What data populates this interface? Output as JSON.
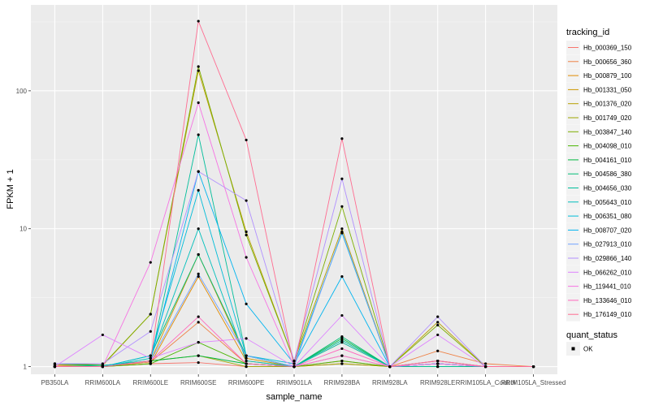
{
  "chart_data": {
    "type": "line",
    "title": "",
    "xlabel": "sample_name",
    "ylabel": "FPKM + 1",
    "y_scale": "log10",
    "ylim": [
      0.88,
      420
    ],
    "y_ticks": [
      {
        "value": 1,
        "label": "1"
      },
      {
        "value": 10,
        "label": "10"
      },
      {
        "value": 100,
        "label": "100"
      }
    ],
    "categories": [
      "PB350LA",
      "RRIM600LA",
      "RRIM600LE",
      "RRIM600SE",
      "RRIM600PE",
      "RRIM901LA",
      "RRIM928BA",
      "RRIM928LA",
      "RRIM928LE",
      "RRIM105LA_Control",
      "RRIM105LA_Stressed"
    ],
    "grid": true,
    "legend": {
      "title": "tracking_id",
      "placement": "right"
    },
    "point_legend": {
      "title": "quant_status",
      "entries": [
        "OK"
      ]
    },
    "series": [
      {
        "name": "Hb_000369_150",
        "color": "#F8766D",
        "values": [
          1.0,
          1.0,
          1.05,
          1.07,
          1.0,
          1.0,
          1.05,
          1.0,
          1.05,
          1.0,
          1.0
        ]
      },
      {
        "name": "Hb_000656_360",
        "color": "#EE8043",
        "values": [
          1.02,
          1.0,
          1.08,
          2.1,
          1.05,
          1.0,
          1.1,
          1.0,
          1.3,
          1.05,
          1.0
        ]
      },
      {
        "name": "Hb_000879_100",
        "color": "#E08B00",
        "values": [
          1.0,
          1.0,
          1.05,
          4.5,
          1.1,
          1.0,
          1.2,
          1.0,
          1.1,
          1.0,
          1.0
        ]
      },
      {
        "name": "Hb_001331_050",
        "color": "#CD9600",
        "values": [
          1.0,
          1.0,
          1.1,
          6.5,
          1.15,
          1.0,
          1.5,
          1.0,
          1.05,
          1.0,
          1.0
        ]
      },
      {
        "name": "Hb_001376_020",
        "color": "#B79F00",
        "values": [
          1.03,
          1.02,
          2.4,
          140,
          9.5,
          1.1,
          10.0,
          1.0,
          2.1,
          1.0,
          1.0
        ]
      },
      {
        "name": "Hb_001749_020",
        "color": "#9DA700",
        "values": [
          1.0,
          1.0,
          1.1,
          1.2,
          1.0,
          1.0,
          1.05,
          1.0,
          1.0,
          1.0,
          1.0
        ]
      },
      {
        "name": "Hb_003847_140",
        "color": "#7CAE00",
        "values": [
          1.05,
          1.03,
          2.4,
          150,
          9.0,
          1.1,
          14.5,
          1.0,
          2.0,
          1.0,
          1.0
        ]
      },
      {
        "name": "Hb_004098_010",
        "color": "#49B500",
        "values": [
          1.0,
          1.0,
          1.05,
          1.5,
          1.05,
          1.0,
          1.1,
          1.0,
          1.05,
          1.0,
          1.0
        ]
      },
      {
        "name": "Hb_004161_010",
        "color": "#00B83F",
        "values": [
          1.05,
          1.02,
          1.1,
          1.2,
          1.05,
          1.0,
          1.6,
          1.0,
          1.0,
          1.0,
          1.0
        ]
      },
      {
        "name": "Hb_004586_380",
        "color": "#00BC76",
        "values": [
          1.0,
          1.0,
          1.2,
          6.5,
          1.2,
          1.0,
          1.65,
          1.0,
          1.05,
          1.0,
          1.0
        ]
      },
      {
        "name": "Hb_004656_030",
        "color": "#00BE9B",
        "values": [
          1.0,
          1.02,
          1.1,
          48,
          1.2,
          1.0,
          1.55,
          1.0,
          1.0,
          1.0,
          1.0
        ]
      },
      {
        "name": "Hb_005643_010",
        "color": "#00BFBB",
        "values": [
          1.0,
          1.0,
          1.15,
          10,
          1.1,
          1.0,
          1.5,
          1.0,
          1.05,
          1.0,
          1.0
        ]
      },
      {
        "name": "Hb_006351_080",
        "color": "#00BCD8",
        "values": [
          1.0,
          1.0,
          1.2,
          19,
          1.2,
          1.05,
          9.3,
          1.0,
          1.1,
          1.0,
          1.0
        ]
      },
      {
        "name": "Hb_008707_020",
        "color": "#00B4EF",
        "values": [
          1.0,
          1.0,
          1.1,
          26,
          2.85,
          1.05,
          4.5,
          1.0,
          1.05,
          1.0,
          1.0
        ]
      },
      {
        "name": "Hb_027913_010",
        "color": "#6FA1FF",
        "values": [
          1.0,
          1.0,
          1.1,
          4.7,
          1.2,
          1.0,
          9.5,
          1.0,
          1.05,
          1.0,
          1.0
        ]
      },
      {
        "name": "Hb_029866_140",
        "color": "#B190FF",
        "values": [
          1.05,
          1.05,
          1.8,
          26,
          16,
          1.1,
          23,
          1.0,
          2.3,
          1.0,
          1.0
        ]
      },
      {
        "name": "Hb_066262_010",
        "color": "#DE82FF",
        "values": [
          1.0,
          1.7,
          1.15,
          1.5,
          1.6,
          1.0,
          2.35,
          1.0,
          1.7,
          1.0,
          1.0
        ]
      },
      {
        "name": "Hb_119441_010",
        "color": "#F674E3",
        "values": [
          1.0,
          1.0,
          5.7,
          82,
          6.2,
          1.0,
          1.2,
          1.0,
          1.05,
          1.0,
          1.0
        ]
      },
      {
        "name": "Hb_133646_010",
        "color": "#FF67BD",
        "values": [
          1.0,
          1.0,
          1.1,
          2.3,
          1.05,
          1.0,
          1.35,
          1.0,
          1.1,
          1.0,
          1.0
        ]
      },
      {
        "name": "Hb_176149_010",
        "color": "#FF6C91",
        "values": [
          1.0,
          1.0,
          1.1,
          320,
          44,
          1.0,
          45,
          1.0,
          1.1,
          1.0,
          1.0
        ]
      }
    ]
  }
}
